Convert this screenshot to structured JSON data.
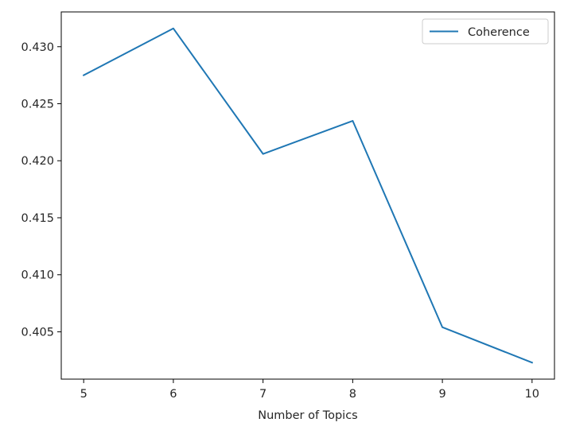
{
  "chart_data": {
    "type": "line",
    "title": "",
    "xlabel": "Number of Topics",
    "ylabel": "",
    "x": [
      5,
      6,
      7,
      8,
      9,
      10
    ],
    "series": [
      {
        "name": "Coherence",
        "values": [
          0.4275,
          0.4316,
          0.4206,
          0.4235,
          0.4054,
          0.4023
        ],
        "color": "#1f77b4"
      }
    ],
    "xticks": [
      5,
      6,
      7,
      8,
      9,
      10
    ],
    "xtick_labels": [
      "5",
      "6",
      "7",
      "8",
      "9",
      "10"
    ],
    "yticks": [
      0.405,
      0.41,
      0.415,
      0.42,
      0.425,
      0.43
    ],
    "ytick_labels": [
      "0.405",
      "0.410",
      "0.415",
      "0.420",
      "0.425",
      "0.430"
    ],
    "xlim": [
      4.75,
      10.25
    ],
    "ylim": [
      0.40085,
      0.43305
    ],
    "grid": false,
    "legend": {
      "position": "top-right",
      "entries": [
        "Coherence"
      ]
    }
  }
}
